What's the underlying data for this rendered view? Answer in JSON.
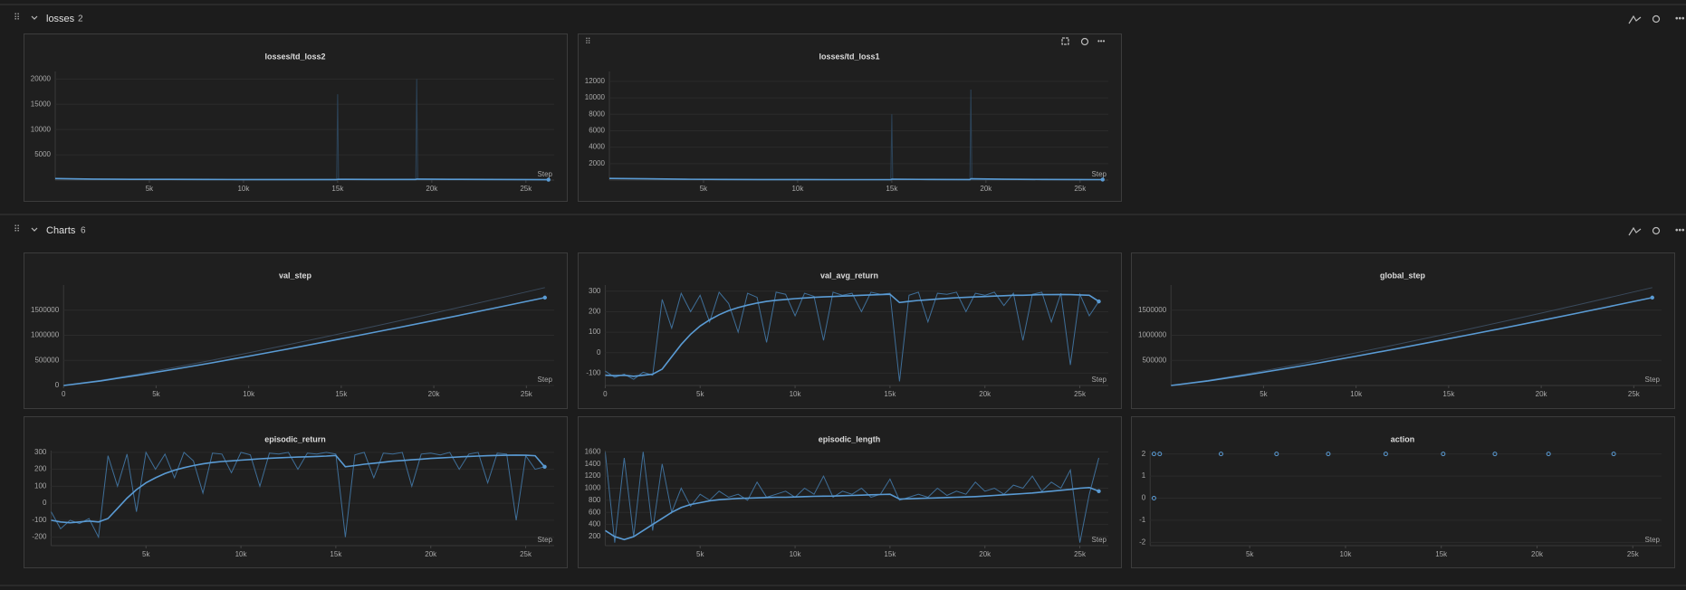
{
  "sections": [
    {
      "title": "losses",
      "count": 2
    },
    {
      "title": "Charts",
      "count": 6
    }
  ],
  "chart_data": [
    {
      "type": "line",
      "title": "losses/td_loss2",
      "x_label": "Step",
      "x": [
        0,
        2000,
        4000,
        6000,
        8000,
        10000,
        12000,
        14000,
        14950,
        15000,
        15050,
        17000,
        19150,
        19200,
        19250,
        21000,
        23000,
        25000,
        26200
      ],
      "series": [
        {
          "color": "#2c4358",
          "values": [
            300,
            200,
            150,
            150,
            100,
            100,
            100,
            100,
            100,
            17000,
            100,
            100,
            100,
            20000,
            100,
            80,
            80,
            80,
            80
          ]
        },
        {
          "color": "#5a9bd4",
          "values": [
            300,
            200,
            150,
            150,
            120,
            110,
            100,
            100,
            100,
            150,
            150,
            130,
            120,
            200,
            200,
            150,
            120,
            100,
            80
          ]
        }
      ],
      "xlim": [
        0,
        26500
      ],
      "ylim": [
        0,
        21500
      ],
      "xticks": [
        {
          "value": 5000,
          "label": "5k"
        },
        {
          "value": 10000,
          "label": "10k"
        },
        {
          "value": 15000,
          "label": "15k"
        },
        {
          "value": 20000,
          "label": "20k"
        },
        {
          "value": 25000,
          "label": "25k"
        }
      ],
      "yticks": [
        5000,
        10000,
        15000,
        20000
      ],
      "grid": true
    },
    {
      "type": "line",
      "title": "losses/td_loss1",
      "x_label": "Step",
      "x": [
        0,
        2000,
        4000,
        6000,
        8000,
        10000,
        12000,
        14000,
        14950,
        15000,
        15050,
        17000,
        19150,
        19200,
        19250,
        21000,
        23000,
        25000,
        26200
      ],
      "series": [
        {
          "color": "#2c4358",
          "values": [
            200,
            150,
            100,
            80,
            60,
            60,
            60,
            60,
            60,
            8000,
            60,
            60,
            60,
            11000,
            60,
            60,
            60,
            60,
            60
          ]
        },
        {
          "color": "#5a9bd4",
          "values": [
            200,
            150,
            100,
            80,
            70,
            65,
            60,
            60,
            60,
            100,
            100,
            80,
            70,
            150,
            150,
            100,
            80,
            70,
            60
          ]
        }
      ],
      "xlim": [
        0,
        26500
      ],
      "ylim": [
        0,
        13200
      ],
      "xticks": [
        {
          "value": 5000,
          "label": "5k"
        },
        {
          "value": 10000,
          "label": "10k"
        },
        {
          "value": 15000,
          "label": "15k"
        },
        {
          "value": 20000,
          "label": "20k"
        },
        {
          "value": 25000,
          "label": "25k"
        }
      ],
      "yticks": [
        2000,
        4000,
        6000,
        8000,
        10000,
        12000
      ],
      "grid": true
    },
    {
      "type": "line",
      "title": "val_step",
      "x_label": "Step",
      "x": [
        0,
        2000,
        4000,
        6000,
        8000,
        10000,
        12000,
        14000,
        16000,
        18000,
        20000,
        22000,
        24000,
        26000
      ],
      "series": [
        {
          "color": "#3a4a5c",
          "values": [
            0,
            102000,
            226000,
            361000,
            502000,
            650000,
            801000,
            957000,
            1115000,
            1277000,
            1442000,
            1609000,
            1778000,
            1950000
          ]
        },
        {
          "color": "#5a9bd4",
          "values": [
            0,
            92000,
            203000,
            324000,
            451000,
            583000,
            719000,
            859000,
            1001000,
            1146000,
            1294000,
            1444000,
            1596000,
            1750000
          ]
        }
      ],
      "xlim": [
        0,
        26500
      ],
      "ylim": [
        0,
        2000000
      ],
      "xticks": [
        0,
        {
          "value": 5000,
          "label": "5k"
        },
        {
          "value": 10000,
          "label": "10k"
        },
        {
          "value": 15000,
          "label": "15k"
        },
        {
          "value": 20000,
          "label": "20k"
        },
        {
          "value": 25000,
          "label": "25k"
        }
      ],
      "yticks": [
        0,
        500000,
        1000000,
        1500000
      ],
      "grid": true
    },
    {
      "type": "line",
      "title": "val_avg_return",
      "x_label": "Step",
      "x": [
        0,
        500,
        1000,
        1500,
        2000,
        2500,
        3000,
        3500,
        4000,
        4500,
        5000,
        5500,
        6000,
        6500,
        7000,
        7500,
        8000,
        8500,
        9000,
        9500,
        10000,
        10500,
        11000,
        11500,
        12000,
        12500,
        13000,
        13500,
        14000,
        14500,
        15000,
        15500,
        16000,
        16500,
        17000,
        17500,
        18000,
        18500,
        19000,
        19500,
        20000,
        20500,
        21000,
        21500,
        22000,
        22500,
        23000,
        23500,
        24000,
        24500,
        25000,
        25500,
        26000
      ],
      "series": [
        {
          "color": "#3f6f99",
          "values": [
            -90,
            -120,
            -105,
            -130,
            -95,
            -110,
            260,
            120,
            290,
            200,
            280,
            150,
            295,
            240,
            100,
            290,
            270,
            50,
            295,
            285,
            180,
            290,
            275,
            60,
            295,
            280,
            290,
            200,
            295,
            285,
            290,
            -140,
            280,
            295,
            150,
            290,
            285,
            295,
            200,
            290,
            280,
            295,
            230,
            290,
            60,
            285,
            295,
            150,
            290,
            -60,
            285,
            180,
            250
          ]
        },
        {
          "color": "#5a9bd4",
          "values": [
            -110,
            -112,
            -110,
            -115,
            -110,
            -105,
            -80,
            -20,
            40,
            90,
            130,
            160,
            185,
            205,
            220,
            232,
            242,
            250,
            256,
            260,
            264,
            267,
            270,
            272,
            274,
            276,
            278,
            280,
            282,
            283,
            285,
            245,
            250,
            255,
            258,
            262,
            265,
            268,
            270,
            272,
            274,
            276,
            278,
            280,
            280,
            282,
            283,
            283,
            284,
            283,
            282,
            280,
            250
          ]
        }
      ],
      "xlim": [
        0,
        26500
      ],
      "ylim": [
        -160,
        330
      ],
      "xticks": [
        0,
        {
          "value": 5000,
          "label": "5k"
        },
        {
          "value": 10000,
          "label": "10k"
        },
        {
          "value": 15000,
          "label": "15k"
        },
        {
          "value": 20000,
          "label": "20k"
        },
        {
          "value": 25000,
          "label": "25k"
        }
      ],
      "yticks": [
        -100,
        0,
        100,
        200,
        300
      ],
      "grid": true
    },
    {
      "type": "line",
      "title": "global_step",
      "x_label": "Step",
      "x": [
        0,
        2000,
        4000,
        6000,
        8000,
        10000,
        12000,
        14000,
        16000,
        18000,
        20000,
        22000,
        24000,
        26000
      ],
      "series": [
        {
          "color": "#3a4a5c",
          "values": [
            0,
            102000,
            226000,
            361000,
            502000,
            650000,
            801000,
            957000,
            1115000,
            1277000,
            1442000,
            1609000,
            1778000,
            1950000
          ]
        },
        {
          "color": "#5a9bd4",
          "values": [
            0,
            92000,
            203000,
            324000,
            451000,
            583000,
            719000,
            859000,
            1001000,
            1146000,
            1294000,
            1444000,
            1596000,
            1750000
          ]
        }
      ],
      "xlim": [
        0,
        26500
      ],
      "ylim": [
        0,
        2000000
      ],
      "xticks": [
        {
          "value": 5000,
          "label": "5k"
        },
        {
          "value": 10000,
          "label": "10k"
        },
        {
          "value": 15000,
          "label": "15k"
        },
        {
          "value": 20000,
          "label": "20k"
        },
        {
          "value": 25000,
          "label": "25k"
        }
      ],
      "yticks": [
        500000,
        1000000,
        1500000
      ],
      "grid": true
    },
    {
      "type": "line",
      "title": "episodic_return",
      "x_label": "Step",
      "x": [
        0,
        500,
        1000,
        1500,
        2000,
        2500,
        3000,
        3500,
        4000,
        4500,
        5000,
        5500,
        6000,
        6500,
        7000,
        7500,
        8000,
        8500,
        9000,
        9500,
        10000,
        10500,
        11000,
        11500,
        12000,
        12500,
        13000,
        13500,
        14000,
        14500,
        15000,
        15500,
        16000,
        16500,
        17000,
        17500,
        18000,
        18500,
        19000,
        19500,
        20000,
        20500,
        21000,
        21500,
        22000,
        22500,
        23000,
        23500,
        24000,
        24500,
        25000,
        25500,
        26000
      ],
      "series": [
        {
          "color": "#3f6f99",
          "values": [
            -50,
            -150,
            -100,
            -120,
            -90,
            -200,
            280,
            100,
            290,
            -50,
            300,
            200,
            290,
            150,
            300,
            250,
            60,
            295,
            290,
            180,
            300,
            285,
            100,
            295,
            290,
            300,
            200,
            295,
            290,
            300,
            290,
            -200,
            285,
            300,
            150,
            295,
            290,
            300,
            100,
            290,
            295,
            285,
            300,
            200,
            290,
            300,
            120,
            295,
            290,
            -100,
            280,
            200,
            215
          ]
        },
        {
          "color": "#5a9bd4",
          "values": [
            -100,
            -110,
            -115,
            -110,
            -105,
            -110,
            -90,
            -30,
            30,
            80,
            120,
            150,
            175,
            195,
            210,
            222,
            232,
            240,
            246,
            250,
            254,
            258,
            262,
            265,
            268,
            270,
            272,
            274,
            276,
            278,
            282,
            215,
            222,
            230,
            236,
            242,
            248,
            252,
            256,
            260,
            264,
            267,
            270,
            273,
            276,
            278,
            280,
            282,
            283,
            284,
            283,
            280,
            215
          ]
        }
      ],
      "xlim": [
        0,
        26500
      ],
      "ylim": [
        -250,
        310
      ],
      "xticks": [
        {
          "value": 5000,
          "label": "5k"
        },
        {
          "value": 10000,
          "label": "10k"
        },
        {
          "value": 15000,
          "label": "15k"
        },
        {
          "value": 20000,
          "label": "20k"
        },
        {
          "value": 25000,
          "label": "25k"
        }
      ],
      "yticks": [
        -200,
        -100,
        0,
        100,
        200,
        300
      ],
      "grid": true
    },
    {
      "type": "line",
      "title": "episodic_length",
      "x_label": "Step",
      "x": [
        0,
        500,
        1000,
        1500,
        2000,
        2500,
        3000,
        3500,
        4000,
        4500,
        5000,
        5500,
        6000,
        6500,
        7000,
        7500,
        8000,
        8500,
        9000,
        9500,
        10000,
        10500,
        11000,
        11500,
        12000,
        12500,
        13000,
        13500,
        14000,
        14500,
        15000,
        15500,
        16000,
        16500,
        17000,
        17500,
        18000,
        18500,
        19000,
        19500,
        20000,
        20500,
        21000,
        21500,
        22000,
        22500,
        23000,
        23500,
        24000,
        24500,
        25000,
        25500,
        26000
      ],
      "series": [
        {
          "color": "#3f6f99",
          "values": [
            1600,
            100,
            1500,
            200,
            1600,
            300,
            1400,
            600,
            1000,
            700,
            900,
            800,
            950,
            850,
            900,
            800,
            1100,
            850,
            900,
            950,
            850,
            1000,
            900,
            1200,
            850,
            950,
            900,
            1000,
            850,
            900,
            1150,
            800,
            850,
            900,
            850,
            1000,
            880,
            950,
            900,
            1100,
            950,
            1000,
            900,
            1050,
            1000,
            1200,
            950,
            1100,
            1000,
            1300,
            100,
            900,
            1500
          ]
        },
        {
          "color": "#5a9bd4",
          "values": [
            300,
            200,
            150,
            200,
            300,
            400,
            500,
            600,
            680,
            730,
            760,
            790,
            810,
            820,
            830,
            835,
            840,
            845,
            850,
            850,
            855,
            860,
            865,
            868,
            870,
            875,
            880,
            885,
            890,
            895,
            900,
            820,
            825,
            830,
            835,
            840,
            845,
            850,
            855,
            860,
            870,
            880,
            890,
            900,
            910,
            920,
            935,
            950,
            965,
            980,
            1000,
            1010,
            950
          ]
        }
      ],
      "xlim": [
        0,
        26500
      ],
      "ylim": [
        50,
        1620
      ],
      "xticks": [
        {
          "value": 5000,
          "label": "5k"
        },
        {
          "value": 10000,
          "label": "10k"
        },
        {
          "value": 15000,
          "label": "15k"
        },
        {
          "value": 20000,
          "label": "20k"
        },
        {
          "value": 25000,
          "label": "25k"
        }
      ],
      "yticks": [
        200,
        400,
        600,
        800,
        1000,
        1200,
        1400,
        1600
      ],
      "grid": true
    },
    {
      "type": "scatter",
      "title": "action",
      "x_label": "Step",
      "x": [
        0,
        0,
        300,
        3500,
        6400,
        9100,
        12100,
        15100,
        17800,
        20600,
        24000
      ],
      "series": [
        {
          "color": "#5a9bd4",
          "values": [
            2,
            0,
            2,
            2,
            2,
            2,
            2,
            2,
            2,
            2,
            2
          ]
        }
      ],
      "xlim": [
        -200,
        26500
      ],
      "ylim": [
        -2.15,
        2.15
      ],
      "xticks": [
        {
          "value": 5000,
          "label": "5k"
        },
        {
          "value": 10000,
          "label": "10k"
        },
        {
          "value": 15000,
          "label": "15k"
        },
        {
          "value": 20000,
          "label": "20k"
        },
        {
          "value": 25000,
          "label": "25k"
        }
      ],
      "yticks": [
        -2,
        -1,
        0,
        1,
        2
      ],
      "grid": true
    }
  ]
}
